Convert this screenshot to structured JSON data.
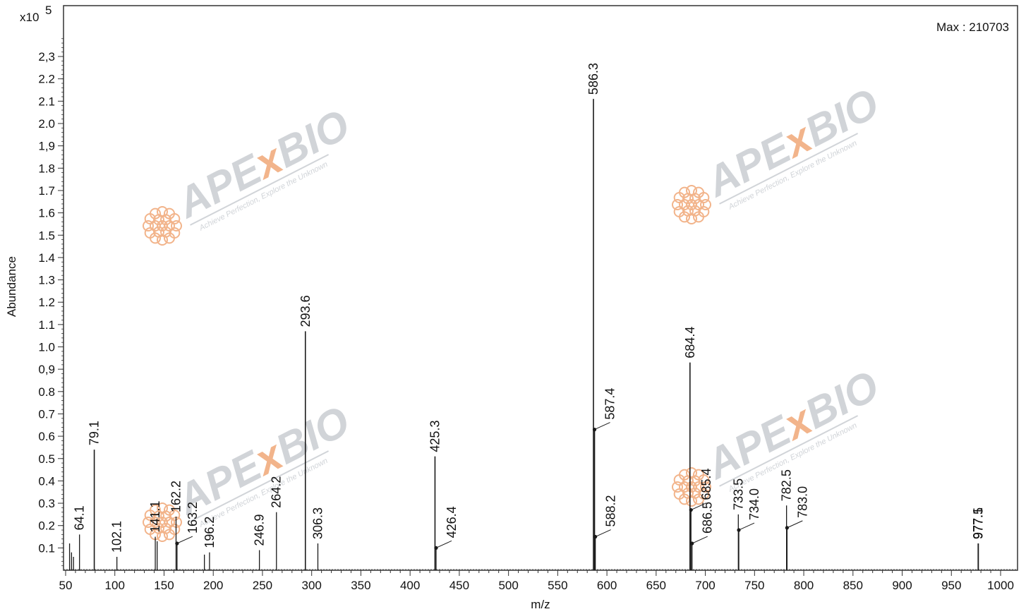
{
  "chart_data": {
    "type": "bar",
    "title": "",
    "xlabel": "m/z",
    "ylabel": "Abundance",
    "y_multiplier_label": "x10",
    "y_multiplier_exponent": "5",
    "max_label": "Max : 210703",
    "xlim": [
      50,
      1005
    ],
    "ylim": [
      0,
      2.4
    ],
    "x_ticks": [
      50,
      100,
      150,
      200,
      250,
      300,
      350,
      400,
      450,
      500,
      550,
      600,
      650,
      700,
      750,
      800,
      850,
      900,
      950,
      1000
    ],
    "y_ticks": [
      {
        "v": 0.1,
        "label": "0.1"
      },
      {
        "v": 0.2,
        "label": "0.2"
      },
      {
        "v": 0.3,
        "label": "0.3"
      },
      {
        "v": 0.4,
        "label": "0.4"
      },
      {
        "v": 0.5,
        "label": "0.5"
      },
      {
        "v": 0.6,
        "label": "0.6"
      },
      {
        "v": 0.7,
        "label": "0.7"
      },
      {
        "v": 0.8,
        "label": "0.8"
      },
      {
        "v": 0.9,
        "label": "0,9"
      },
      {
        "v": 1.0,
        "label": "1.0"
      },
      {
        "v": 1.1,
        "label": "1.1"
      },
      {
        "v": 1.2,
        "label": "1.2"
      },
      {
        "v": 1.3,
        "label": "1.3"
      },
      {
        "v": 1.4,
        "label": "1.4"
      },
      {
        "v": 1.5,
        "label": "1.5"
      },
      {
        "v": 1.6,
        "label": "1.6"
      },
      {
        "v": 1.7,
        "label": "1.7"
      },
      {
        "v": 1.8,
        "label": "1.8"
      },
      {
        "v": 1.9,
        "label": "1,9"
      },
      {
        "v": 2.0,
        "label": "2.0"
      },
      {
        "v": 2.1,
        "label": "2.1"
      },
      {
        "v": 2.2,
        "label": "2.2"
      },
      {
        "v": 2.3,
        "label": "2,3"
      }
    ],
    "grid": false,
    "peaks": [
      {
        "x": 54.0,
        "y": 0.12
      },
      {
        "x": 56.0,
        "y": 0.08
      },
      {
        "x": 58.0,
        "y": 0.06
      },
      {
        "x": 64.1,
        "y": 0.16,
        "label": "64.1"
      },
      {
        "x": 79.1,
        "y": 0.54,
        "label": "79.1"
      },
      {
        "x": 102.1,
        "y": 0.06,
        "label": "102.1"
      },
      {
        "x": 141.1,
        "y": 0.15,
        "label": "141.1"
      },
      {
        "x": 143.0,
        "y": 0.13
      },
      {
        "x": 162.2,
        "y": 0.24,
        "label": "162.2"
      },
      {
        "x": 163.2,
        "y": 0.12,
        "label": "163.2"
      },
      {
        "x": 191.0,
        "y": 0.07
      },
      {
        "x": 196.2,
        "y": 0.08,
        "label": "196.2"
      },
      {
        "x": 246.9,
        "y": 0.09,
        "label": "246.9"
      },
      {
        "x": 264.2,
        "y": 0.26,
        "label": "264.2"
      },
      {
        "x": 293.6,
        "y": 1.07,
        "label": "293.6"
      },
      {
        "x": 306.3,
        "y": 0.12,
        "label": "306.3"
      },
      {
        "x": 425.3,
        "y": 0.51,
        "label": "425.3"
      },
      {
        "x": 426.4,
        "y": 0.1,
        "label": "426.4"
      },
      {
        "x": 586.3,
        "y": 2.11,
        "label": "586.3"
      },
      {
        "x": 587.4,
        "y": 0.63,
        "label": "587.4"
      },
      {
        "x": 588.2,
        "y": 0.15,
        "label": "588.2"
      },
      {
        "x": 684.4,
        "y": 0.93,
        "label": "684.4"
      },
      {
        "x": 685.4,
        "y": 0.27,
        "label": "685.4"
      },
      {
        "x": 686.5,
        "y": 0.12,
        "label": "686.5"
      },
      {
        "x": 733.5,
        "y": 0.25,
        "label": "733.5"
      },
      {
        "x": 734.0,
        "y": 0.18,
        "label": "734.0"
      },
      {
        "x": 782.5,
        "y": 0.29,
        "label": "782.5"
      },
      {
        "x": 783.0,
        "y": 0.19,
        "label": "783.0"
      },
      {
        "x": 977.1,
        "y": 0.12,
        "label": "977.1"
      },
      {
        "x": 977.5,
        "y": 0.12,
        "label": "977.5"
      }
    ],
    "label_offsets_note": "",
    "colors": {
      "line": "#1a1a1a",
      "frame": "#333333",
      "watermark_gray": "#c9cdd2",
      "watermark_orange": "#f0a877"
    }
  },
  "watermark": {
    "brand_left": "APE",
    "brand_x": "x",
    "brand_right": "BIO",
    "tagline": "Achieve Perfection, Explore the Unknown"
  }
}
